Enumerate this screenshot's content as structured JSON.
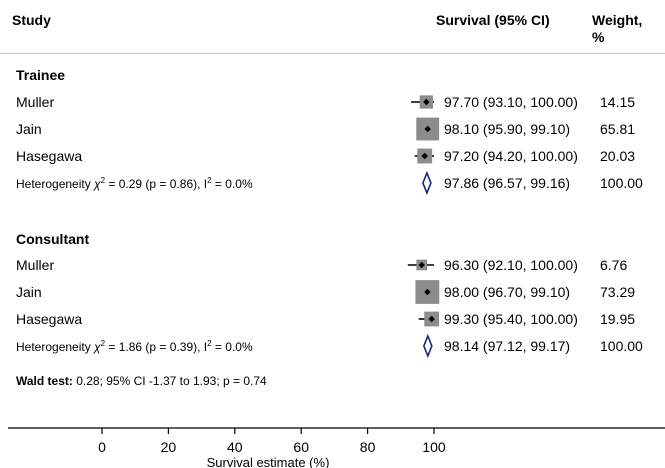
{
  "headers": {
    "study": "Study",
    "ci": "Survival (95% CI)",
    "weight": "Weight, %"
  },
  "groups": [
    {
      "title": "Trainee",
      "rows": [
        {
          "label": "Muller",
          "ci": "97.70 (93.10, 100.00)",
          "weight": "14.15"
        },
        {
          "label": "Jain",
          "ci": "98.10 (95.90, 99.10)",
          "weight": "65.81"
        },
        {
          "label": "Hasegawa",
          "ci": "97.20 (94.20, 100.00)",
          "weight": "20.03"
        }
      ],
      "heterogeneity": {
        "prefix": "Heterogeneity ",
        "chi": "χ",
        "chi_rest": " = 0.29 (p = 0.86), I",
        "i_rest": " = 0.0%",
        "ci": "97.86 (96.57, 99.16)",
        "weight": "100.00"
      }
    },
    {
      "title": "Consultant",
      "rows": [
        {
          "label": "Muller",
          "ci": "96.30 (92.10, 100.00)",
          "weight": "6.76"
        },
        {
          "label": "Jain",
          "ci": "98.00 (96.70, 99.10)",
          "weight": "73.29"
        },
        {
          "label": "Hasegawa",
          "ci": "99.30 (95.40, 100.00)",
          "weight": "19.95"
        }
      ],
      "heterogeneity": {
        "prefix": "Heterogeneity ",
        "chi": "χ",
        "chi_rest": " = 1.86 (p = 0.39), I",
        "i_rest": " = 0.0%",
        "ci": "98.14 (97.12, 99.17)",
        "weight": "100.00"
      }
    }
  ],
  "sup2": "2",
  "wald": {
    "label": "Wald test:",
    "text": " 0.28; 95% CI -1.37 to 1.93; p = 0.74"
  },
  "chart_data": {
    "type": "forest",
    "xlabel": "Survival estimate (%)",
    "xlim": [
      0,
      100
    ],
    "xticks": [
      0,
      20,
      40,
      60,
      80,
      100
    ],
    "groups": [
      {
        "name": "Trainee",
        "studies": [
          {
            "name": "Muller",
            "estimate": 97.7,
            "lower": 93.1,
            "upper": 100.0,
            "weight": 14.15
          },
          {
            "name": "Jain",
            "estimate": 98.1,
            "lower": 95.9,
            "upper": 99.1,
            "weight": 65.81
          },
          {
            "name": "Hasegawa",
            "estimate": 97.2,
            "lower": 94.2,
            "upper": 100.0,
            "weight": 20.03
          }
        ],
        "pooled": {
          "estimate": 97.86,
          "lower": 96.57,
          "upper": 99.16,
          "weight": 100.0
        }
      },
      {
        "name": "Consultant",
        "studies": [
          {
            "name": "Muller",
            "estimate": 96.3,
            "lower": 92.1,
            "upper": 100.0,
            "weight": 6.76
          },
          {
            "name": "Jain",
            "estimate": 98.0,
            "lower": 96.7,
            "upper": 99.1,
            "weight": 73.29
          },
          {
            "name": "Hasegawa",
            "estimate": 99.3,
            "lower": 95.4,
            "upper": 100.0,
            "weight": 19.95
          }
        ],
        "pooled": {
          "estimate": 98.14,
          "lower": 97.12,
          "upper": 99.17,
          "weight": 100.0
        }
      }
    ],
    "colors": {
      "box": "#8c8c8c",
      "point": "#000000",
      "diamond": "#1a237e",
      "axis": "#000000"
    }
  }
}
